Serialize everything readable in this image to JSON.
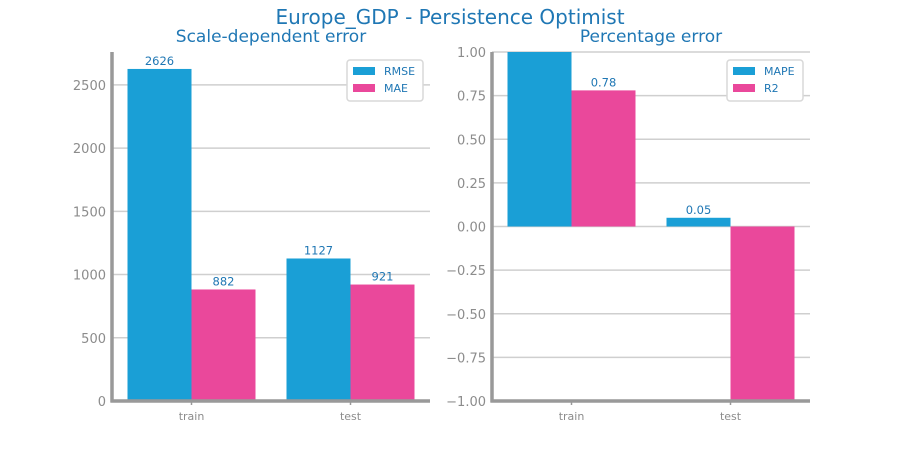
{
  "title": "Europe_GDP - Persistence Optimist",
  "colors": {
    "series1": "#1a9fd6",
    "series2": "#ea489b",
    "text": "#1f77b4",
    "axis": "#999999",
    "grid": "#cfcfcf"
  },
  "chart_data": [
    {
      "type": "bar",
      "title": "Scale-dependent error",
      "categories": [
        "train",
        "test"
      ],
      "series": [
        {
          "name": "RMSE",
          "values": [
            2626,
            1127
          ],
          "labels": [
            "2626",
            "1127"
          ]
        },
        {
          "name": "MAE",
          "values": [
            882,
            921
          ],
          "labels": [
            "882",
            "921"
          ]
        }
      ],
      "ylim": [
        0,
        2760
      ],
      "yticks": [
        0,
        500,
        1000,
        1500,
        2000,
        2500
      ],
      "ytick_labels": [
        "0",
        "500",
        "1000",
        "1500",
        "2000",
        "2500"
      ],
      "grid": true,
      "legend": "top-right"
    },
    {
      "type": "bar",
      "title": "Percentage error",
      "categories": [
        "train",
        "test"
      ],
      "series": [
        {
          "name": "MAPE",
          "values": [
            1.0,
            0.05
          ],
          "labels": [
            "",
            "0.05"
          ]
        },
        {
          "name": "R2",
          "values": [
            0.78,
            -1.0
          ],
          "labels": [
            "0.78",
            ""
          ]
        }
      ],
      "ylim": [
        -1.0,
        1.0
      ],
      "yticks": [
        -1.0,
        -0.75,
        -0.5,
        -0.25,
        0.0,
        0.25,
        0.5,
        0.75,
        1.0
      ],
      "ytick_labels": [
        "−1.00",
        "−0.75",
        "−0.50",
        "−0.25",
        "0.00",
        "0.25",
        "0.50",
        "0.75",
        "1.00"
      ],
      "grid": true,
      "legend": "top-right"
    }
  ]
}
